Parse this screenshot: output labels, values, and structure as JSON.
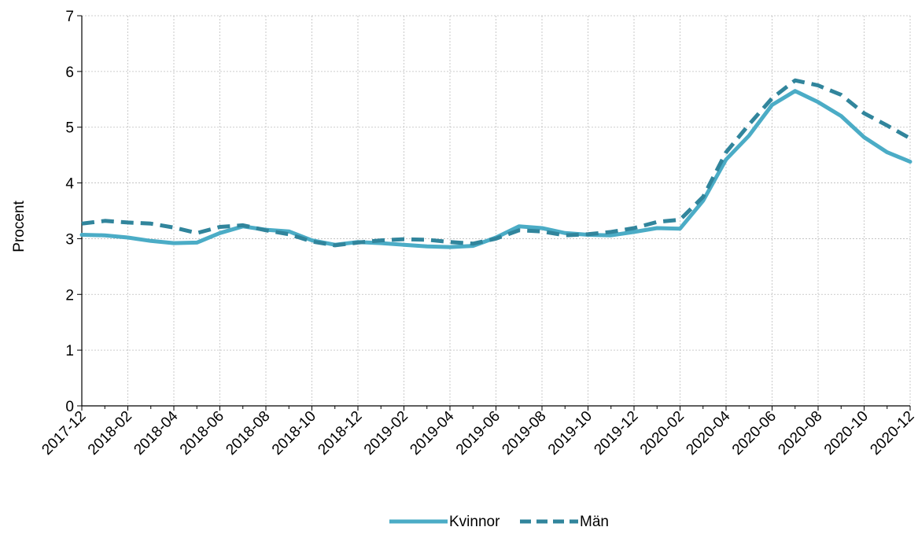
{
  "chart_data": {
    "type": "line",
    "title": "",
    "xlabel": "",
    "ylabel": "Procent",
    "ylim": [
      0,
      7
    ],
    "yticks": [
      0,
      1,
      2,
      3,
      4,
      5,
      6,
      7
    ],
    "grid": true,
    "legend_position": "bottom-center",
    "x": [
      "2017-12",
      "2018-01",
      "2018-02",
      "2018-03",
      "2018-04",
      "2018-05",
      "2018-06",
      "2018-07",
      "2018-08",
      "2018-09",
      "2018-10",
      "2018-11",
      "2018-12",
      "2019-01",
      "2019-02",
      "2019-03",
      "2019-04",
      "2019-05",
      "2019-06",
      "2019-07",
      "2019-08",
      "2019-09",
      "2019-10",
      "2019-11",
      "2019-12",
      "2020-01",
      "2020-02",
      "2020-03",
      "2020-04",
      "2020-05",
      "2020-06",
      "2020-07",
      "2020-08",
      "2020-09",
      "2020-10",
      "2020-11",
      "2020-12"
    ],
    "xtick_labels": [
      "2017-12",
      "2018-02",
      "2018-04",
      "2018-06",
      "2018-08",
      "2018-10",
      "2018-12",
      "2019-02",
      "2019-04",
      "2019-06",
      "2019-08",
      "2019-10",
      "2019-12",
      "2020-02",
      "2020-04",
      "2020-06",
      "2020-08",
      "2020-10",
      "2020-12"
    ],
    "series": [
      {
        "name": "Kvinnor",
        "color": "#4BACC6",
        "style": "solid",
        "values": [
          3.07,
          3.06,
          3.02,
          2.96,
          2.92,
          2.93,
          3.1,
          3.22,
          3.16,
          3.13,
          2.97,
          2.89,
          2.94,
          2.92,
          2.89,
          2.86,
          2.85,
          2.87,
          3.02,
          3.22,
          3.19,
          3.1,
          3.07,
          3.06,
          3.12,
          3.19,
          3.18,
          3.68,
          4.42,
          4.85,
          5.4,
          5.65,
          5.45,
          5.2,
          4.82,
          4.55,
          4.38
        ]
      },
      {
        "name": "Män",
        "color": "#31859C",
        "style": "dashed",
        "values": [
          3.27,
          3.32,
          3.29,
          3.27,
          3.2,
          3.1,
          3.21,
          3.24,
          3.15,
          3.08,
          2.95,
          2.88,
          2.93,
          2.97,
          2.99,
          2.98,
          2.94,
          2.91,
          3.0,
          3.15,
          3.13,
          3.06,
          3.08,
          3.12,
          3.19,
          3.3,
          3.34,
          3.75,
          4.55,
          5.05,
          5.52,
          5.84,
          5.75,
          5.58,
          5.25,
          5.03,
          4.8
        ]
      }
    ]
  }
}
